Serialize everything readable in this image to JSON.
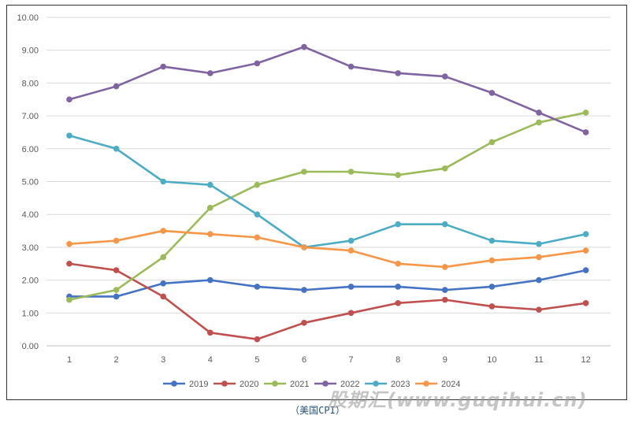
{
  "chart_data": {
    "type": "line",
    "title": "",
    "xlabel": "",
    "ylabel": "",
    "x": [
      1,
      2,
      3,
      4,
      5,
      6,
      7,
      8,
      9,
      10,
      11,
      12
    ],
    "ylim": [
      0,
      10
    ],
    "y_ticks": [
      "0.00",
      "1.00",
      "2.00",
      "3.00",
      "4.00",
      "5.00",
      "6.00",
      "7.00",
      "8.00",
      "9.00",
      "10.00"
    ],
    "grid": "horizontal",
    "legend_position": "bottom",
    "series": [
      {
        "name": "2019",
        "color": "#4472c4",
        "values": [
          1.5,
          1.5,
          1.9,
          2.0,
          1.8,
          1.7,
          1.8,
          1.8,
          1.7,
          1.8,
          2.0,
          2.3
        ]
      },
      {
        "name": "2020",
        "color": "#c0504d",
        "values": [
          2.5,
          2.3,
          1.5,
          0.4,
          0.2,
          0.7,
          1.0,
          1.3,
          1.4,
          1.2,
          1.1,
          1.3
        ]
      },
      {
        "name": "2021",
        "color": "#9bbb59",
        "values": [
          1.4,
          1.7,
          2.7,
          4.2,
          4.9,
          5.3,
          5.3,
          5.2,
          5.4,
          6.2,
          6.8,
          7.1
        ]
      },
      {
        "name": "2022",
        "color": "#8064a2",
        "values": [
          7.5,
          7.9,
          8.5,
          8.3,
          8.6,
          9.1,
          8.5,
          8.3,
          8.2,
          7.7,
          7.1,
          6.5
        ]
      },
      {
        "name": "2023",
        "color": "#4bacc6",
        "values": [
          6.4,
          6.0,
          5.0,
          4.9,
          4.0,
          3.0,
          3.2,
          3.7,
          3.7,
          3.2,
          3.1,
          3.4
        ]
      },
      {
        "name": "2024",
        "color": "#f79646",
        "values": [
          3.1,
          3.2,
          3.5,
          3.4,
          3.3,
          3.0,
          2.9,
          2.5,
          2.4,
          2.6,
          2.7,
          2.9
        ]
      }
    ]
  },
  "caption": "（美国CPI）",
  "watermark": "股期汇(www.guqihui.cn)"
}
